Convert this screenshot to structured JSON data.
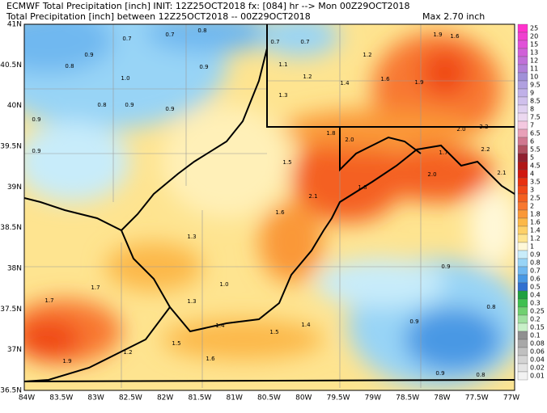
{
  "header": {
    "line1": "ECMWF Total Precipitation [inch] INIT: 12Z25OCT2018 fx: [084] hr --> Mon 00Z29OCT2018",
    "line2": "Total Precipitation [inch] between 12Z25OCT2018 -- 00Z29OCT2018",
    "max": "Max 2.70 inch"
  },
  "lat_labels": [
    "41N",
    "40.5N",
    "40N",
    "39.5N",
    "39N",
    "38.5N",
    "38N",
    "37.5N",
    "37N",
    "36.5N"
  ],
  "lon_labels": [
    "84W",
    "83.5W",
    "83W",
    "82.5W",
    "82W",
    "81.5W",
    "81W",
    "80.5W",
    "80W",
    "79.5W",
    "79W",
    "78.5W",
    "78W",
    "77.5W",
    "77W"
  ],
  "legend": [
    {
      "label": "25",
      "color": "#ff33cc"
    },
    {
      "label": "20",
      "color": "#f040d0"
    },
    {
      "label": "15",
      "color": "#e050d8"
    },
    {
      "label": "13",
      "color": "#d060d8"
    },
    {
      "label": "12",
      "color": "#c070d8"
    },
    {
      "label": "11",
      "color": "#b080d8"
    },
    {
      "label": "10",
      "color": "#a090d8"
    },
    {
      "label": "9.5",
      "color": "#b0a0e0"
    },
    {
      "label": "9",
      "color": "#c0b0e8"
    },
    {
      "label": "8.5",
      "color": "#d0c0ec"
    },
    {
      "label": "8",
      "color": "#e0d0f0"
    },
    {
      "label": "7.5",
      "color": "#ecd8f0"
    },
    {
      "label": "7",
      "color": "#f4c8e0"
    },
    {
      "label": "6.5",
      "color": "#e8a0b8"
    },
    {
      "label": "6",
      "color": "#d07890"
    },
    {
      "label": "5.5",
      "color": "#b05060"
    },
    {
      "label": "5",
      "color": "#902030"
    },
    {
      "label": "4.5",
      "color": "#b01818"
    },
    {
      "label": "4",
      "color": "#d01810"
    },
    {
      "label": "3.5",
      "color": "#e83010"
    },
    {
      "label": "3",
      "color": "#f04818"
    },
    {
      "label": "2.5",
      "color": "#f46020"
    },
    {
      "label": "2",
      "color": "#f87830"
    },
    {
      "label": "1.8",
      "color": "#fa9838"
    },
    {
      "label": "1.6",
      "color": "#fcb848"
    },
    {
      "label": "1.4",
      "color": "#fdd068"
    },
    {
      "label": "1.2",
      "color": "#fee490"
    },
    {
      "label": "1",
      "color": "#fff8d8"
    },
    {
      "label": "0.9",
      "color": "#c8ecfa"
    },
    {
      "label": "0.8",
      "color": "#98d4f6"
    },
    {
      "label": "0.7",
      "color": "#70b8f0"
    },
    {
      "label": "0.6",
      "color": "#4898e4"
    },
    {
      "label": "0.5",
      "color": "#3070d0"
    },
    {
      "label": "0.4",
      "color": "#20a040"
    },
    {
      "label": "0.3",
      "color": "#40c050"
    },
    {
      "label": "0.25",
      "color": "#70d070"
    },
    {
      "label": "0.2",
      "color": "#a0e0a0"
    },
    {
      "label": "0.15",
      "color": "#c8f0c8"
    },
    {
      "label": "0.1",
      "color": "#909090"
    },
    {
      "label": "0.08",
      "color": "#a8a8a8"
    },
    {
      "label": "0.06",
      "color": "#c0c0c0"
    },
    {
      "label": "0.04",
      "color": "#d4d4d4"
    },
    {
      "label": "0.02",
      "color": "#e4e4e4"
    },
    {
      "label": "0.01",
      "color": "#f2f2f2"
    }
  ],
  "contour_labels": [
    "0.7",
    "0.7",
    "0.8",
    "0.9",
    "0.8",
    "1.0",
    "0.9",
    "0.8",
    "0.9",
    "0.9",
    "0.9",
    "0.9",
    "0.7",
    "0.7",
    "1.1",
    "1.2",
    "1.3",
    "1.4",
    "1.2",
    "1.6",
    "1.9",
    "1.6",
    "1.9",
    "2.0",
    "1.8",
    "1.5",
    "2.1",
    "1.8",
    "2.0",
    "1.7",
    "2.0",
    "2.2",
    "2.2",
    "2.1",
    "1.6",
    "1.3",
    "1.0",
    "1.3",
    "1.7",
    "1.7",
    "1.9",
    "1.2",
    "1.5",
    "1.6",
    "1.4",
    "1.5",
    "1.4",
    "0.9",
    "0.9",
    "0.8",
    "0.9",
    "0.8"
  ]
}
